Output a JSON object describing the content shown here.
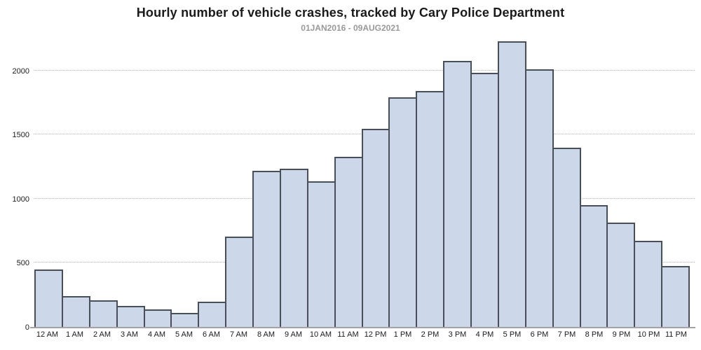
{
  "chart_data": {
    "type": "bar",
    "title": "Hourly number of vehicle crashes, tracked by Cary Police Department",
    "subtitle": "01JAN2016 - 09AUG2021",
    "categories": [
      "12 AM",
      "1 AM",
      "2 AM",
      "3 AM",
      "4 AM",
      "5 AM",
      "6 AM",
      "7 AM",
      "8 AM",
      "9 AM",
      "10 AM",
      "11 AM",
      "12 PM",
      "1 PM",
      "2 PM",
      "3 PM",
      "4 PM",
      "5 PM",
      "6 PM",
      "7 PM",
      "8 PM",
      "9 PM",
      "10 PM",
      "11 PM"
    ],
    "values": [
      450,
      240,
      210,
      165,
      135,
      110,
      195,
      705,
      1220,
      1235,
      1135,
      1325,
      1545,
      1790,
      1840,
      2075,
      1980,
      2230,
      2010,
      1400,
      950,
      815,
      670,
      475
    ],
    "xlabel": "",
    "ylabel": "",
    "ylim": [
      0,
      2250
    ],
    "yticks": [
      0,
      500,
      1000,
      1500,
      2000
    ],
    "grid": "horizontal-dotted",
    "legend": "none",
    "colors": {
      "bar_fill": "#ccd8e9",
      "bar_border": "#494f58",
      "gridline": "#b0b0b0",
      "axis_line": "#a3a3a3",
      "title_text": "#1a1a1a",
      "subtitle_text": "#999999",
      "tick_text": "#1a1a1a"
    }
  }
}
